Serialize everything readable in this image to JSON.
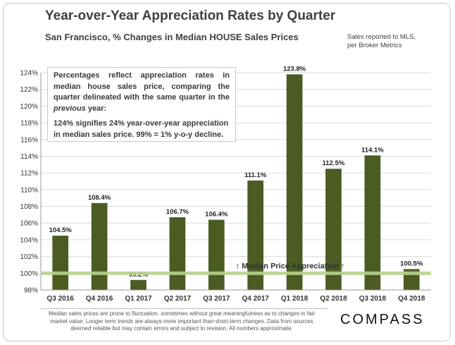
{
  "header": {
    "title": "Year-over-Year Appreciation Rates by Quarter",
    "subtitle": "San Francisco, % Changes in Median HOUSE Sales Prices",
    "source_line1": "Sales reported to MLS,",
    "source_line2": "per Broker Metrics"
  },
  "note": {
    "p1_a": "Percentages reflect appreciation rates in median house sales price, comparing the quarter delineated with the same quarter in the ",
    "p1_em": "previous",
    "p1_b": " year:",
    "p2": "124% signifies 24% year-over-year appreciation in median sales price. 99% = 1% y-o-y decline."
  },
  "footer": {
    "disclaimer": "Median sales prices are prone to fluctuation, sometimes without great meaningfulness as to changes in fair market value. Longer term trends are always more important than short-term changes. Data from sources deemed reliable but may contain errors and subject to revision. All numbers approximate."
  },
  "brand": {
    "logo": "COMPASS"
  },
  "colors": {
    "bar": "#4b5c22",
    "reference_band": "#b9d28f",
    "grid": "#d9d9d9"
  },
  "chart_data": {
    "type": "bar",
    "title": "Year-over-Year Appreciation Rates by Quarter",
    "subtitle": "San Francisco, % Changes in Median HOUSE Sales Prices",
    "categories": [
      "Q3 2016",
      "Q4 2016",
      "Q1 2017",
      "Q2 2017",
      "Q3 2017",
      "Q4 2017",
      "Q1 2018",
      "Q2 2018",
      "Q3 2018",
      "Q4 2018"
    ],
    "values": [
      104.5,
      108.4,
      99.2,
      106.7,
      106.4,
      111.1,
      123.8,
      112.5,
      114.1,
      100.5
    ],
    "labels": [
      "104.5%",
      "108.4%",
      "99.2%",
      "106.7%",
      "106.4%",
      "111.1%",
      "123.8%",
      "112.5%",
      "114.1%",
      "100.5%"
    ],
    "ylim": [
      98,
      124
    ],
    "ystep": 2,
    "yticks": [
      "98%",
      "100%",
      "102%",
      "104%",
      "106%",
      "108%",
      "110%",
      "112%",
      "114%",
      "116%",
      "118%",
      "120%",
      "122%",
      "124%"
    ],
    "grid": true,
    "reference_value": 100,
    "reference_label": "↑ Median Price Appreciation ↑",
    "xlabel": "",
    "ylabel": ""
  }
}
